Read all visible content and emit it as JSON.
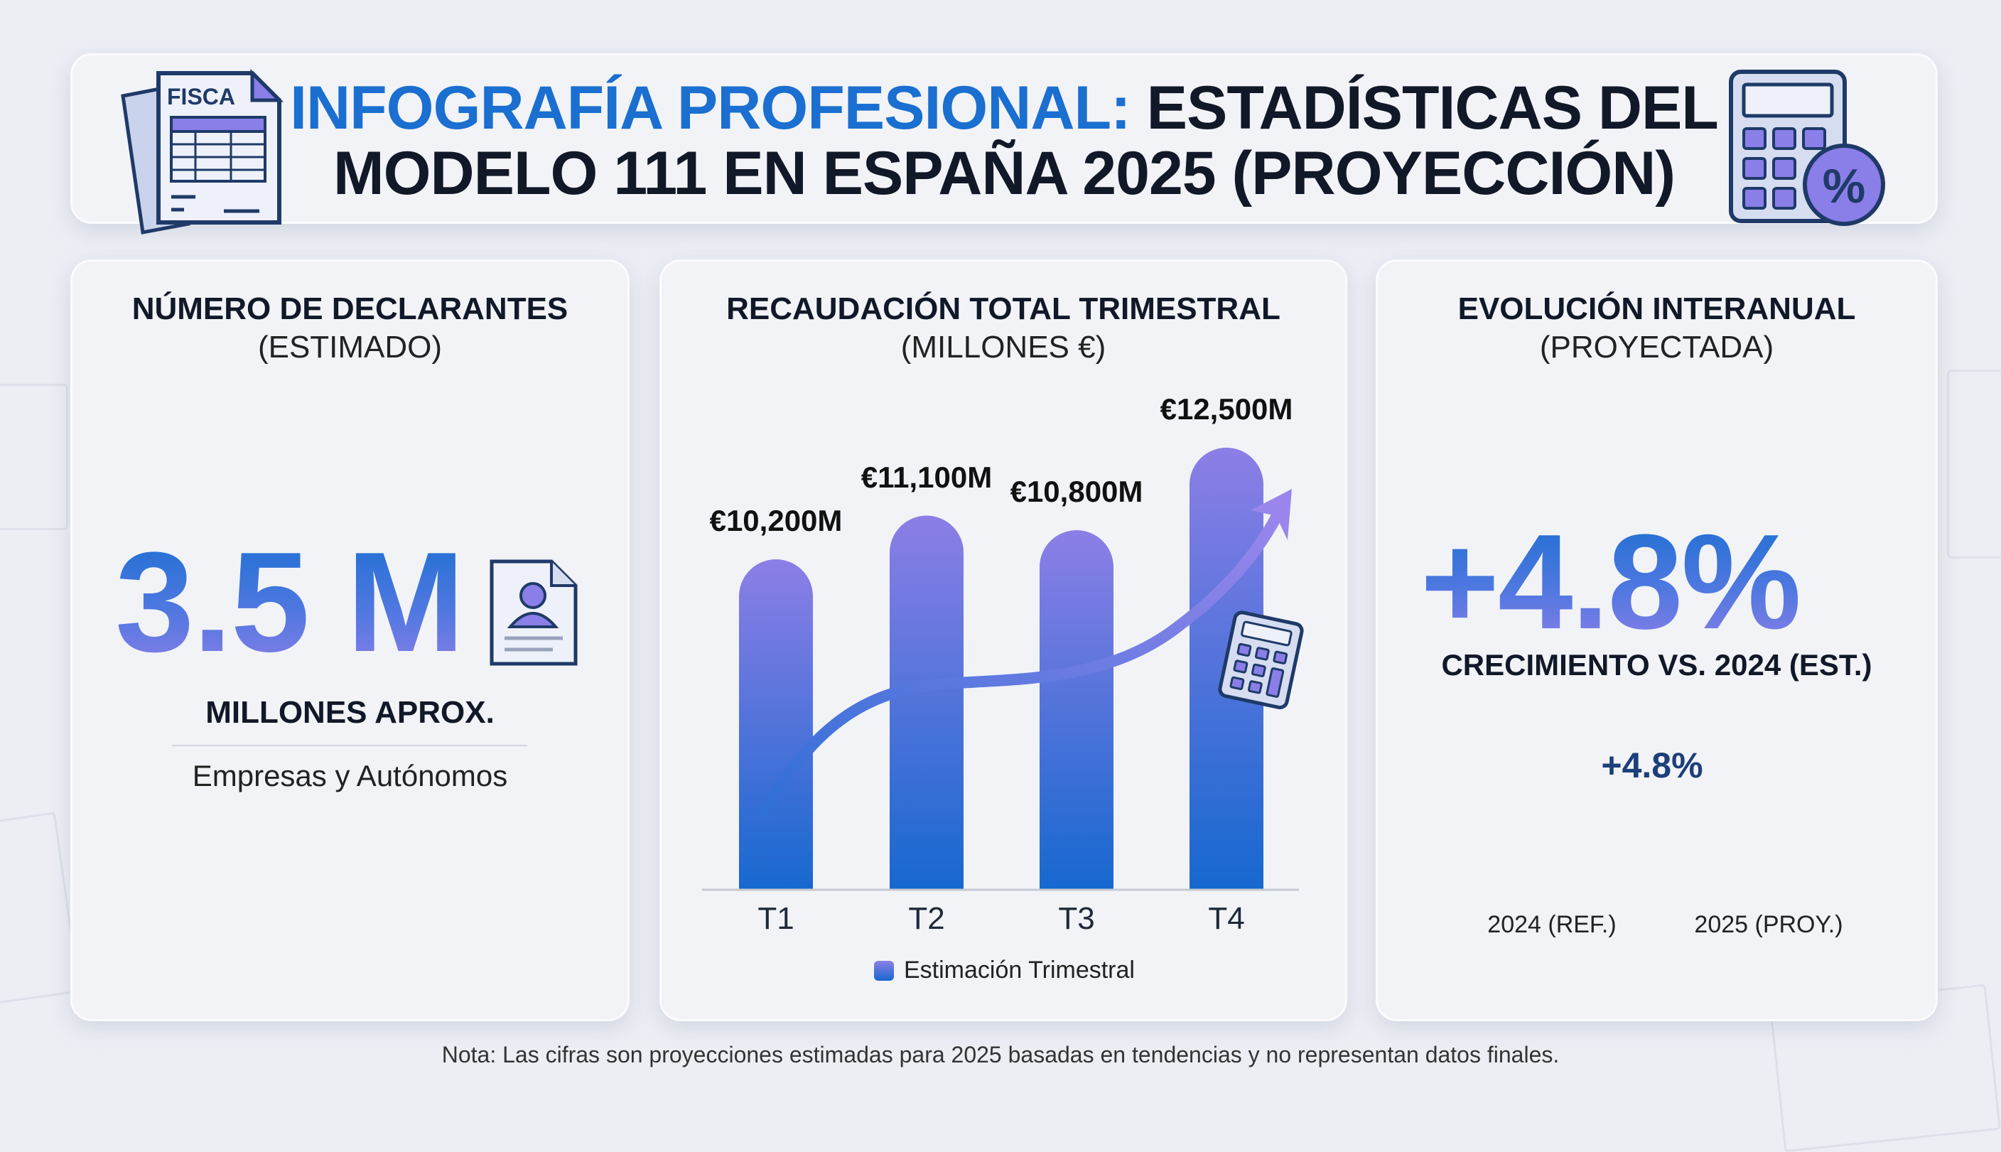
{
  "header": {
    "title_accent": "INFOGRAFÍA PROFESIONAL:",
    "title_rest_line1": "ESTADÍSTICAS DEL",
    "title_line2": "MODELO 111 EN ESPAÑA 2025 (PROYECCIÓN)",
    "doc_icon_label": "FISCA",
    "left_icon": "tax-document-icon",
    "right_icon": "calculator-percent-icon"
  },
  "declarantes": {
    "title": "NÚMERO DE DECLARANTES",
    "subtitle": "(ESTIMADO)",
    "value": "3.5 M",
    "unit_label": "MILLONES APROX.",
    "description": "Empresas y Autónomos",
    "icon": "person-id-card-icon"
  },
  "recaudacion": {
    "title": "RECAUDACIÓN TOTAL TRIMESTRAL",
    "subtitle": "(MILLONES €)",
    "legend": "Estimación Trimestral"
  },
  "evolucion": {
    "title": "EVOLUCIÓN INTERANUAL",
    "subtitle": "(PROYECTADA)",
    "value": "+4.8%",
    "caption": "CRECIMIENTO VS. 2024 (EST.)",
    "delta_label": "+4.8%",
    "icon": "arrow-up-icon"
  },
  "footnote": "Nota: Las cifras son proyecciones estimadas para 2025 basadas en tendencias y no representan datos finales.",
  "colors": {
    "primary_blue": "#1a6fd0",
    "purple": "#8a7ee8",
    "reference_gray": "#b9bcc4",
    "text_dark": "#111827"
  },
  "chart_data": [
    {
      "type": "bar",
      "title": "RECAUDACIÓN TOTAL TRIMESTRAL",
      "subtitle": "(MILLONES €)",
      "categories": [
        "T1",
        "T2",
        "T3",
        "T4"
      ],
      "values": [
        10200,
        11100,
        10800,
        12500
      ],
      "data_labels": [
        "€10,200M",
        "€11,100M",
        "€10,800M",
        "€12,500M"
      ],
      "series": [
        {
          "name": "Estimación Trimestral",
          "values": [
            10200,
            11100,
            10800,
            12500
          ]
        }
      ],
      "legend_position": "bottom",
      "grid": false,
      "trend_arrow": true
    },
    {
      "type": "bar",
      "categories": [
        "2024 (REF.)",
        "2025 (PROY.)"
      ],
      "annotation": "+4.8%",
      "grid": false
    }
  ]
}
